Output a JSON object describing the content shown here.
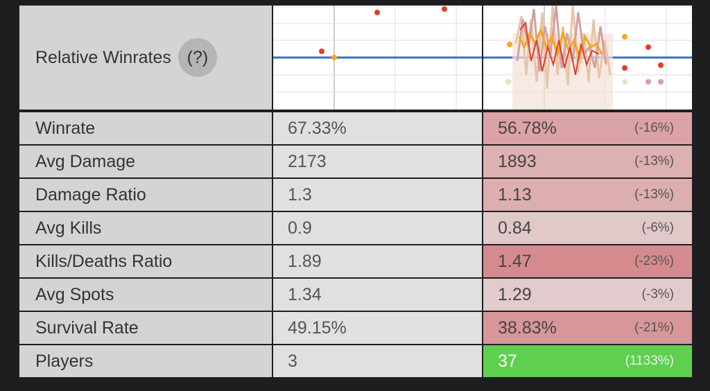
{
  "header": {
    "title": "Relative Winrates",
    "help": "(?)"
  },
  "table": {
    "rows": [
      [
        "Winrate",
        "67.33%",
        "56.78%",
        "(-16%)"
      ],
      [
        "Avg Damage",
        "2173",
        "1893",
        "(-13%)"
      ],
      [
        "Damage Ratio",
        "1.3",
        "1.13",
        "(-13%)"
      ],
      [
        "Avg Kills",
        "0.9",
        "0.84",
        "(-6%)"
      ],
      [
        "Kills/Deaths Ratio",
        "1.89",
        "1.47",
        "(-23%)"
      ],
      [
        "Avg Spots",
        "1.34",
        "1.29",
        "(-3%)"
      ],
      [
        "Survival Rate",
        "49.15%",
        "38.83%",
        "(-21%)"
      ],
      [
        "Players",
        "3",
        "37",
        "(1133%)"
      ]
    ]
  }
}
